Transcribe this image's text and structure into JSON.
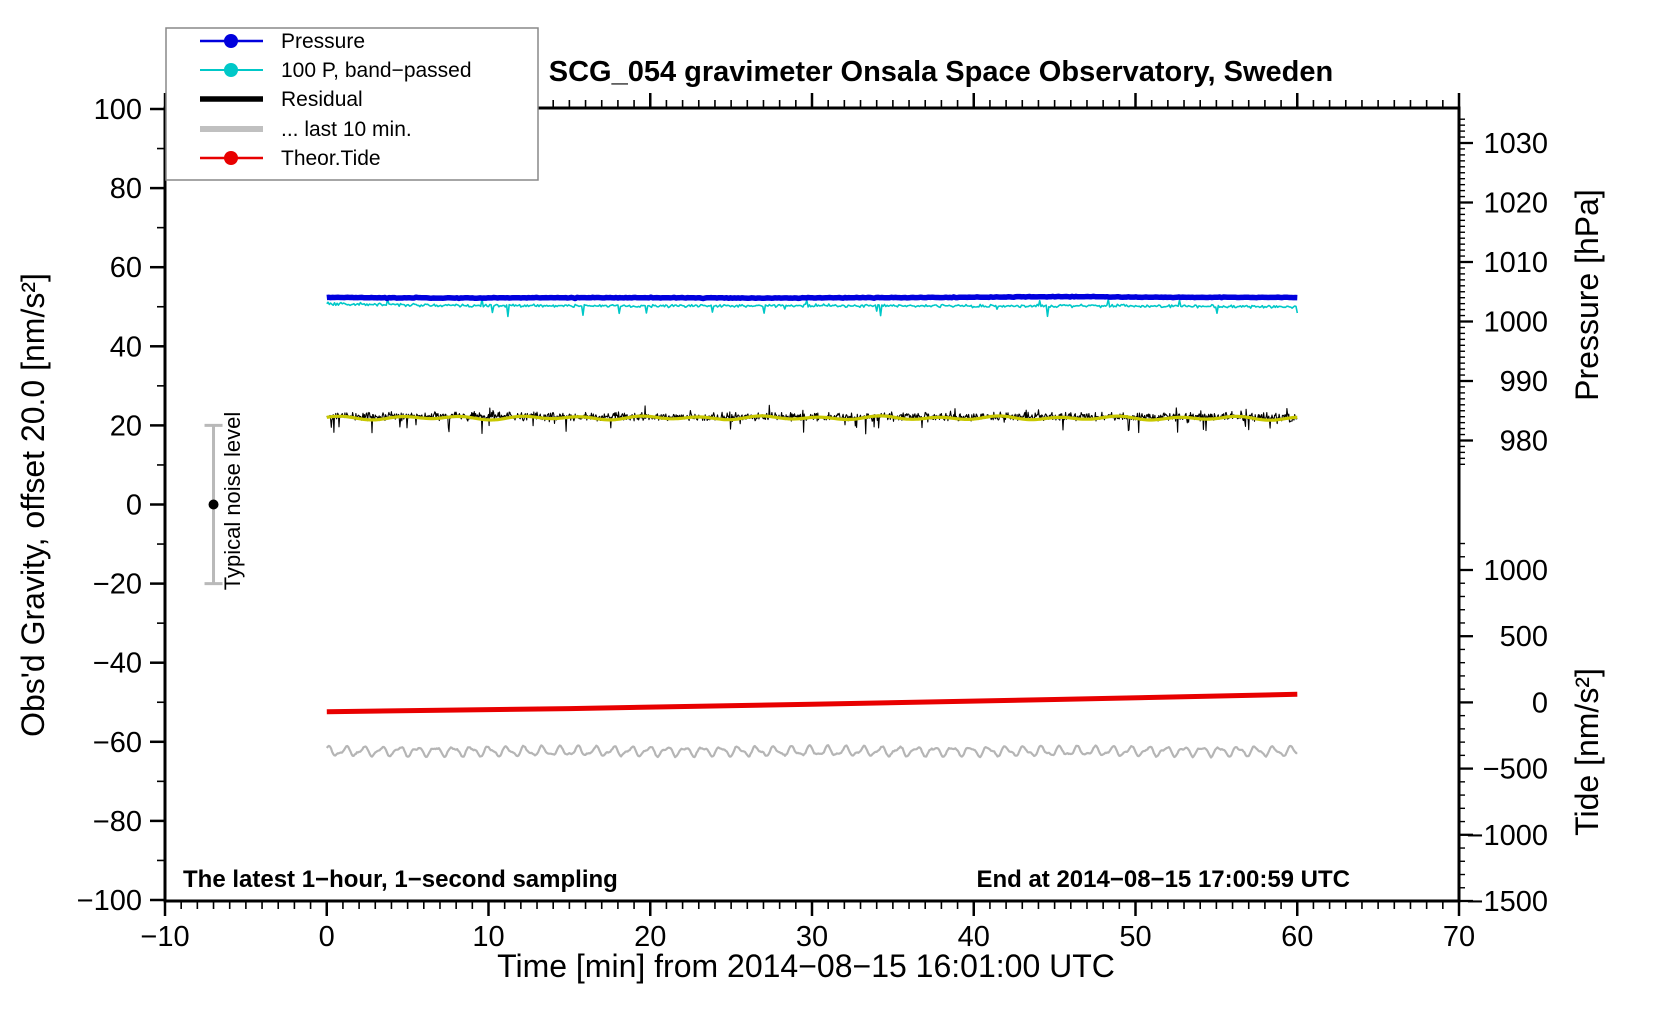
{
  "chart_data": {
    "type": "line",
    "title": "SCG_054 gravimeter Onsala Space Observatory, Sweden",
    "xlabel": "Time [min] from 2014−08−15 16:01:00 UTC",
    "ylabel_left": "Obs'd Gravity, offset 20.0 [nm/s²]",
    "ylabel_right_pressure": "Pressure [hPa]",
    "ylabel_right_tide": "Tide [nm/s²]",
    "annotations": {
      "sampling_note": "The latest 1−hour, 1−second sampling",
      "end_note": "End at 2014−08−15 17:00:59 UTC",
      "noise_bar_label": "Typical noise level"
    },
    "axes": {
      "x": {
        "min": -10,
        "max": 70,
        "major_step": 10,
        "minor_step": 1,
        "tick_values": [
          -10,
          0,
          10,
          20,
          30,
          40,
          50,
          60,
          70
        ],
        "tick_labels": [
          "−10",
          "0",
          "10",
          "20",
          "30",
          "40",
          "50",
          "60",
          "70"
        ],
        "grid": false
      },
      "y_left": {
        "min": -100,
        "max": 100,
        "major_step": 20,
        "minor_step": 10,
        "tick_values": [
          -100,
          -80,
          -60,
          -40,
          -20,
          0,
          20,
          40,
          60,
          80,
          100
        ],
        "tick_labels": [
          "−100",
          "−80",
          "−60",
          "−40",
          "−20",
          "0",
          "20",
          "40",
          "60",
          "80",
          "100"
        ]
      },
      "y_right_pressure": {
        "tick_values": [
          1030,
          1020,
          1010,
          1000,
          990,
          980
        ],
        "tick_labels": [
          "1030",
          "1020",
          "1010",
          "1000",
          "990",
          "980"
        ],
        "minor_step_hpa": 1,
        "minor_range": [
          976,
          1034
        ]
      },
      "y_right_tide": {
        "tick_values": [
          1000,
          500,
          0,
          -500,
          -1000,
          -1500
        ],
        "tick_labels": [
          "1000",
          "500",
          "0",
          "−500",
          "−1000",
          "−1500"
        ],
        "minor_step": 100,
        "minor_range": [
          -1500,
          1250
        ]
      }
    },
    "series": [
      {
        "id": "residual",
        "name": "Residual",
        "color": "#000000",
        "width": 1.1,
        "style": "noisy",
        "points": [
          [
            0,
            22.3
          ],
          [
            20,
            22.2
          ],
          [
            40,
            22.2
          ],
          [
            60,
            22.1
          ]
        ],
        "noise": 1.25,
        "spike": 3.3,
        "spike_prob": 0.06,
        "n": 1500
      },
      {
        "id": "residual_smooth",
        "name": "Residual smoothed",
        "color": "#c8c800",
        "width": 3.2,
        "style": "wiggle",
        "points": [
          [
            0,
            21.9
          ],
          [
            30,
            21.9
          ],
          [
            60,
            21.8
          ]
        ],
        "wiggle_amp": 0.35,
        "wiggle_freq": 1.7,
        "n": 420
      },
      {
        "id": "band_passed",
        "name": "100 P, band−passed",
        "color": "#00c8c8",
        "width": 1.6,
        "style": "noisy",
        "points": [
          [
            0,
            50.8
          ],
          [
            5,
            50.4
          ],
          [
            10,
            50.3
          ],
          [
            20,
            50.2
          ],
          [
            30,
            50.3
          ],
          [
            40,
            50.2
          ],
          [
            50,
            50.2
          ],
          [
            60,
            50.0
          ]
        ],
        "noise": 0.45,
        "spike": 2.6,
        "spike_prob": 0.035,
        "n": 750
      },
      {
        "id": "pressure",
        "name": "Pressure",
        "color": "#0000dd",
        "width": 5.5,
        "style": "noisy",
        "points": [
          [
            0,
            52.35
          ],
          [
            8,
            52.2
          ],
          [
            14,
            52.3
          ],
          [
            20,
            52.3
          ],
          [
            27,
            52.2
          ],
          [
            33,
            52.3
          ],
          [
            38,
            52.35
          ],
          [
            43,
            52.5
          ],
          [
            47,
            52.55
          ],
          [
            52,
            52.4
          ],
          [
            60,
            52.35
          ]
        ],
        "noise": 0.1,
        "spike": 0.15,
        "spike_prob": 0.02,
        "n": 500
      },
      {
        "id": "tide",
        "name": "Theor.Tide",
        "color": "#e80000",
        "width": 5,
        "style": "line",
        "points": [
          [
            0,
            -52.4
          ],
          [
            15,
            -51.6
          ],
          [
            30,
            -50.5
          ],
          [
            45,
            -49.3
          ],
          [
            60,
            -48.0
          ]
        ]
      },
      {
        "id": "last10",
        "name": "... last 10 min.",
        "color": "#b5b5b5",
        "width": 2.2,
        "style": "wave",
        "points": [
          [
            0,
            -62.4
          ],
          [
            60,
            -62.4
          ]
        ],
        "wave_amp": 1.0,
        "wave_freq": 5.7,
        "n": 900
      }
    ],
    "noise_bar": {
      "t": -7,
      "lo": -20,
      "hi": 20,
      "dot": 0,
      "bar_color": "#b9b9b9",
      "dot_color": "#000000"
    },
    "x_range_of_data_min": 0,
    "x_range_of_data_max": 60
  },
  "legend": {
    "items": [
      {
        "label": "Pressure",
        "color": "#0000dd",
        "marker": true,
        "sample_width": 2.4
      },
      {
        "label": "100 P, band−passed",
        "color": "#00c8c8",
        "marker": true,
        "sample_width": 2.0
      },
      {
        "label": "Residual",
        "color": "#000000",
        "marker": false,
        "sample_width": 5.5
      },
      {
        "label": "... last 10 min.",
        "color": "#c0c0c0",
        "marker": false,
        "sample_width": 6.0
      },
      {
        "label": "Theor.Tide",
        "color": "#e80000",
        "marker": true,
        "sample_width": 2.4
      }
    ]
  },
  "colors": {
    "frame": "#000000",
    "background": "#ffffff",
    "legend_border": "#888888"
  }
}
